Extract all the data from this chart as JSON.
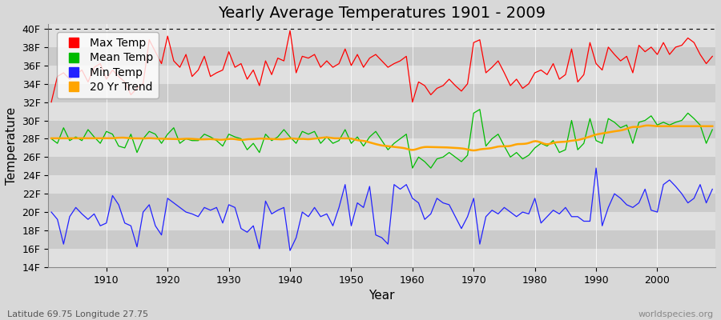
{
  "title": "Yearly Average Temperatures 1901 - 2009",
  "xlabel": "Year",
  "ylabel": "Temperature",
  "lat_lon_label": "Latitude 69.75 Longitude 27.75",
  "source_label": "worldspecies.org",
  "years": [
    1901,
    1902,
    1903,
    1904,
    1905,
    1906,
    1907,
    1908,
    1909,
    1910,
    1911,
    1912,
    1913,
    1914,
    1915,
    1916,
    1917,
    1918,
    1919,
    1920,
    1921,
    1922,
    1923,
    1924,
    1925,
    1926,
    1927,
    1928,
    1929,
    1930,
    1931,
    1932,
    1933,
    1934,
    1935,
    1936,
    1937,
    1938,
    1939,
    1940,
    1941,
    1942,
    1943,
    1944,
    1945,
    1946,
    1947,
    1948,
    1949,
    1950,
    1951,
    1952,
    1953,
    1954,
    1955,
    1956,
    1957,
    1958,
    1959,
    1960,
    1961,
    1962,
    1963,
    1964,
    1965,
    1966,
    1967,
    1968,
    1969,
    1970,
    1971,
    1972,
    1973,
    1974,
    1975,
    1976,
    1977,
    1978,
    1979,
    1980,
    1981,
    1982,
    1983,
    1984,
    1985,
    1986,
    1987,
    1988,
    1989,
    1990,
    1991,
    1992,
    1993,
    1994,
    1995,
    1996,
    1997,
    1998,
    1999,
    2000,
    2001,
    2002,
    2003,
    2004,
    2005,
    2006,
    2007,
    2008,
    2009
  ],
  "max_temp": [
    32.0,
    34.8,
    35.2,
    34.5,
    35.0,
    35.5,
    34.2,
    35.8,
    36.2,
    34.5,
    35.5,
    34.8,
    34.2,
    32.8,
    33.5,
    34.0,
    38.8,
    37.5,
    36.2,
    39.2,
    36.5,
    35.8,
    37.2,
    34.8,
    35.5,
    37.0,
    34.8,
    35.2,
    35.5,
    37.5,
    35.8,
    36.2,
    34.5,
    35.5,
    33.8,
    36.5,
    35.0,
    36.8,
    36.5,
    39.8,
    35.2,
    37.0,
    36.8,
    37.2,
    35.8,
    36.5,
    35.8,
    36.2,
    37.8,
    36.0,
    37.2,
    35.8,
    36.8,
    37.2,
    36.5,
    35.8,
    36.2,
    36.5,
    37.0,
    32.0,
    34.2,
    33.8,
    32.8,
    33.5,
    33.8,
    34.5,
    33.8,
    33.2,
    34.0,
    38.5,
    38.8,
    35.2,
    35.8,
    36.5,
    35.2,
    33.8,
    34.5,
    33.5,
    34.0,
    35.2,
    35.5,
    35.0,
    36.2,
    34.5,
    35.0,
    37.8,
    34.2,
    35.0,
    38.5,
    36.2,
    35.5,
    38.0,
    37.2,
    36.5,
    37.0,
    35.2,
    38.2,
    37.5,
    38.0,
    37.2,
    38.5,
    37.2,
    38.0,
    38.2,
    39.0,
    38.5,
    37.2,
    36.2,
    37.0
  ],
  "mean_temp": [
    28.0,
    27.5,
    29.2,
    27.8,
    28.2,
    27.8,
    29.0,
    28.2,
    27.5,
    28.8,
    28.5,
    27.2,
    27.0,
    28.5,
    26.5,
    28.0,
    28.8,
    28.5,
    27.5,
    28.5,
    29.2,
    27.5,
    28.0,
    27.8,
    27.8,
    28.5,
    28.2,
    27.8,
    27.2,
    28.5,
    28.2,
    28.0,
    26.8,
    27.5,
    26.5,
    28.5,
    27.8,
    28.2,
    29.0,
    28.2,
    27.5,
    28.8,
    28.5,
    28.8,
    27.5,
    28.2,
    27.5,
    27.8,
    29.0,
    27.5,
    28.2,
    27.2,
    28.2,
    28.8,
    27.8,
    26.8,
    27.5,
    28.0,
    28.5,
    24.8,
    26.0,
    25.5,
    24.8,
    25.8,
    26.0,
    26.5,
    26.0,
    25.5,
    26.2,
    30.8,
    31.2,
    27.2,
    28.0,
    28.5,
    27.2,
    26.0,
    26.5,
    25.8,
    26.2,
    27.0,
    27.5,
    27.2,
    27.8,
    26.5,
    26.8,
    30.0,
    26.8,
    27.5,
    30.2,
    27.8,
    27.5,
    30.2,
    29.8,
    29.2,
    29.5,
    27.5,
    29.8,
    30.0,
    30.5,
    29.5,
    29.8,
    29.5,
    29.8,
    30.0,
    30.8,
    30.2,
    29.5,
    27.5,
    29.0
  ],
  "min_temp": [
    20.0,
    19.2,
    16.5,
    19.5,
    20.5,
    19.8,
    19.2,
    19.8,
    18.5,
    18.8,
    21.8,
    20.8,
    18.8,
    18.5,
    16.2,
    20.0,
    20.8,
    18.5,
    17.5,
    21.5,
    21.0,
    20.5,
    20.0,
    19.8,
    19.5,
    20.5,
    20.2,
    20.5,
    18.8,
    20.8,
    20.5,
    18.2,
    17.8,
    18.5,
    16.0,
    21.2,
    19.8,
    20.2,
    20.5,
    15.8,
    17.2,
    20.0,
    19.5,
    20.5,
    19.5,
    19.8,
    18.5,
    20.5,
    23.0,
    18.5,
    21.0,
    20.5,
    22.8,
    17.5,
    17.2,
    16.5,
    23.0,
    22.5,
    23.0,
    21.5,
    21.0,
    19.2,
    19.8,
    21.5,
    21.0,
    20.8,
    19.5,
    18.2,
    19.5,
    21.5,
    16.5,
    19.5,
    20.2,
    19.8,
    20.5,
    20.0,
    19.5,
    20.0,
    19.8,
    21.5,
    18.8,
    19.5,
    20.2,
    19.8,
    20.5,
    19.5,
    19.5,
    19.0,
    19.0,
    24.8,
    18.5,
    20.5,
    22.0,
    21.5,
    20.8,
    20.5,
    21.0,
    22.5,
    20.2,
    20.0,
    23.0,
    23.5,
    22.8,
    22.0,
    21.0,
    21.5,
    23.0,
    21.0,
    22.5
  ],
  "ylim": [
    14,
    40.5
  ],
  "yticks": [
    14,
    16,
    18,
    20,
    22,
    24,
    26,
    28,
    30,
    32,
    34,
    36,
    38,
    40
  ],
  "ytick_labels": [
    "14F",
    "16F",
    "18F",
    "20F",
    "22F",
    "24F",
    "26F",
    "28F",
    "30F",
    "32F",
    "34F",
    "36F",
    "38F",
    "40F"
  ],
  "xtick_years": [
    1910,
    1920,
    1930,
    1940,
    1950,
    1960,
    1970,
    1980,
    1990,
    2000
  ],
  "bg_color": "#d8d8d8",
  "plot_bg_color_light": "#e0e0e0",
  "plot_bg_color_dark": "#cbcbcb",
  "max_color": "#ff0000",
  "mean_color": "#00bb00",
  "min_color": "#2222ff",
  "trend_color": "#ffa500",
  "grid_color": "#ffffff",
  "dotted_line_y": 40,
  "title_fontsize": 14,
  "axis_label_fontsize": 11,
  "tick_fontsize": 9,
  "legend_fontsize": 10
}
